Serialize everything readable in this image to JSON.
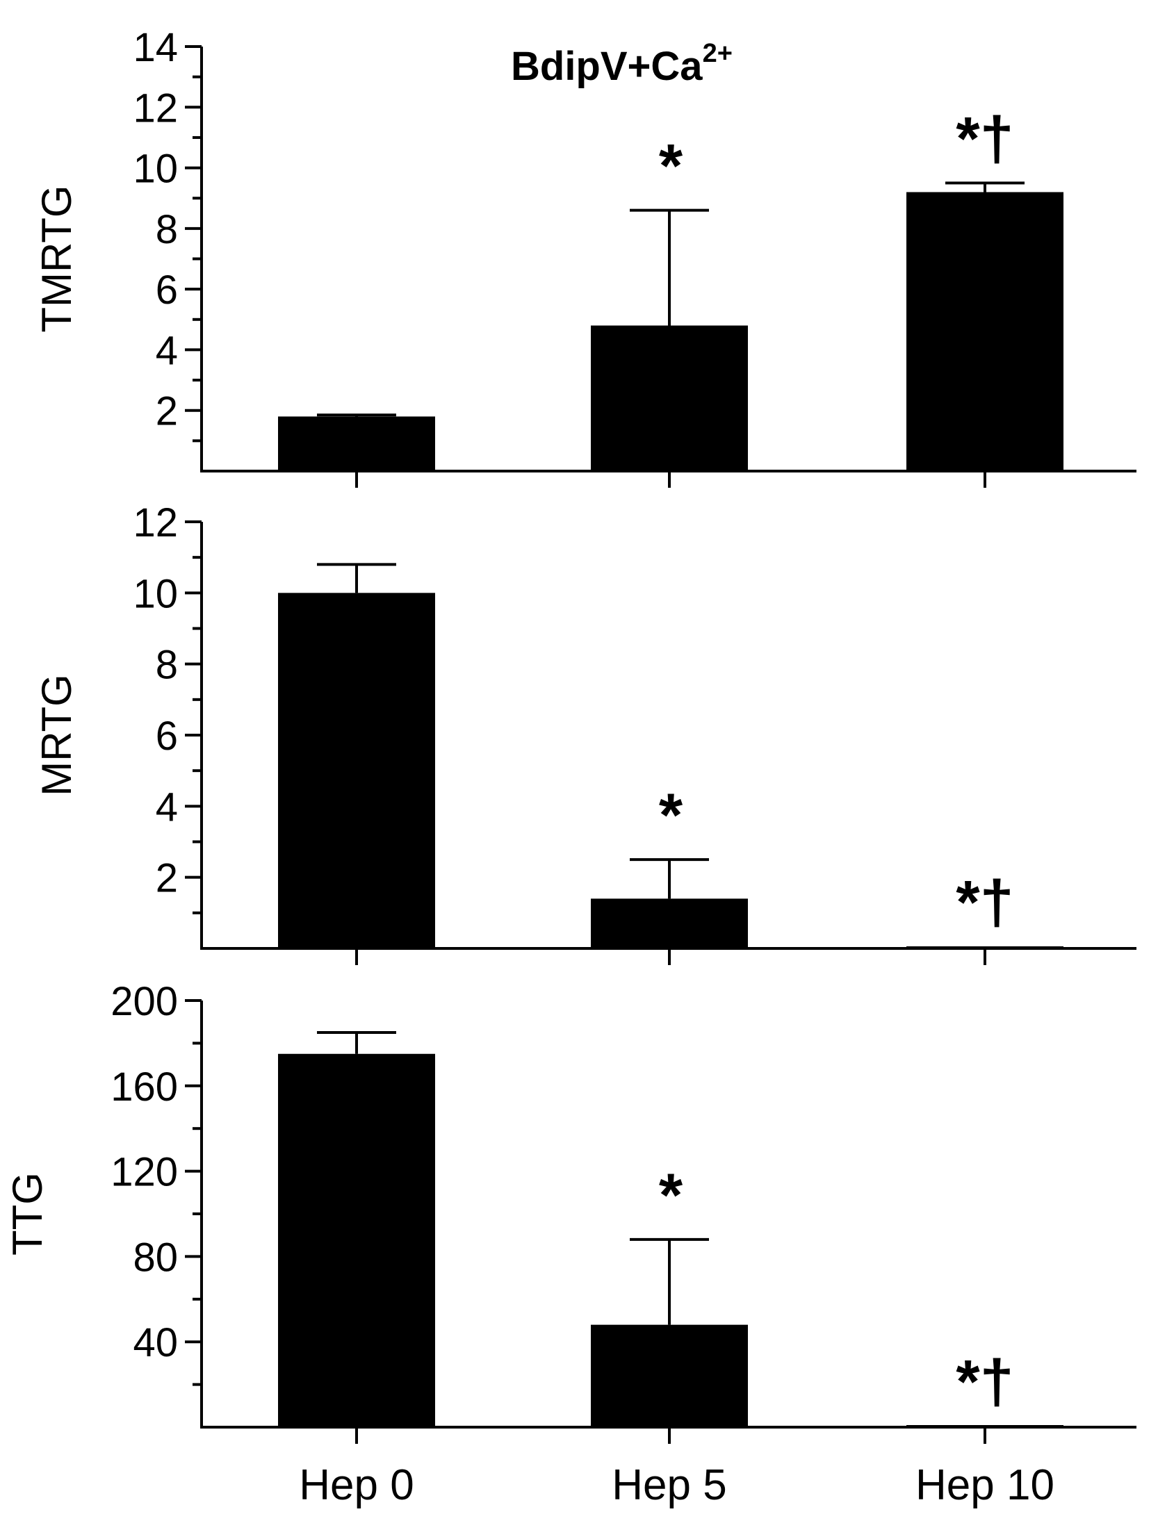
{
  "chart_data": {
    "type": "bar",
    "title": "BdipV+Ca",
    "title_superscript": "2+",
    "xlabel": "",
    "categories": [
      "Hep 0",
      "Hep 5",
      "Hep 10"
    ],
    "panels": [
      {
        "ylabel": "TMRTG",
        "ylim": [
          0,
          14
        ],
        "yticks": [
          2,
          4,
          6,
          8,
          10,
          12,
          14
        ],
        "ytick_labels": [
          "2",
          "4",
          "6",
          "8",
          "10",
          "12",
          "14"
        ],
        "values": [
          1.8,
          4.8,
          9.2
        ],
        "errors": [
          0.05,
          3.8,
          0.3
        ],
        "annotations": [
          "",
          "*",
          "*†"
        ]
      },
      {
        "ylabel": "MRTG",
        "ylim": [
          0,
          12
        ],
        "yticks": [
          2,
          4,
          6,
          8,
          10,
          12
        ],
        "ytick_labels": [
          "2",
          "4",
          "6",
          "8",
          "10",
          "12"
        ],
        "values": [
          10.0,
          1.4,
          0.05
        ],
        "errors": [
          0.8,
          1.1,
          0.0
        ],
        "annotations": [
          "",
          "*",
          "*†"
        ]
      },
      {
        "ylabel": "TTG",
        "ylim": [
          0,
          200
        ],
        "yticks": [
          40,
          80,
          120,
          160,
          200
        ],
        "ytick_labels": [
          "40",
          "80",
          "120",
          "160",
          "200"
        ],
        "values": [
          175,
          48,
          0.5
        ],
        "errors": [
          10,
          40,
          0
        ],
        "annotations": [
          "",
          "*",
          "*†"
        ]
      }
    ]
  }
}
